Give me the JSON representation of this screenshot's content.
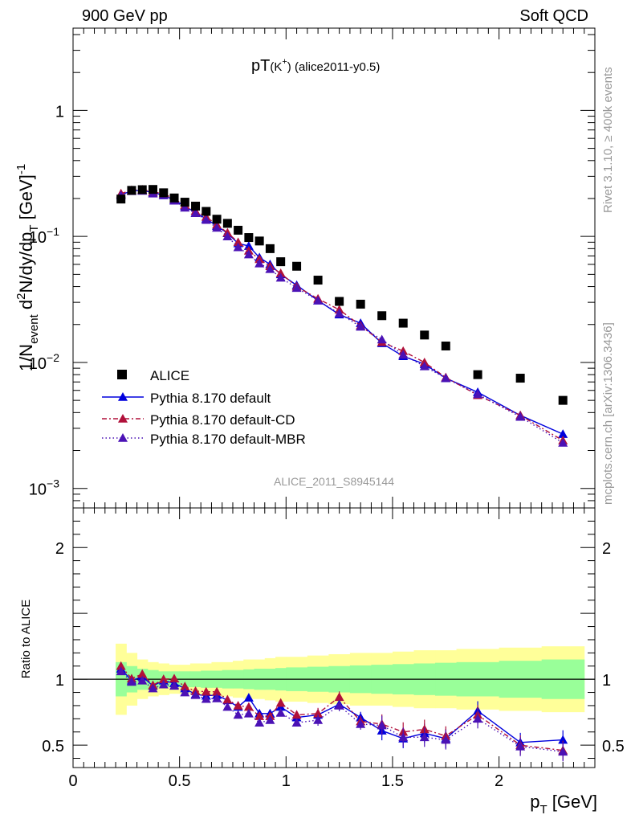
{
  "header": {
    "left": "900 GeV pp",
    "right": "Soft QCD",
    "plot_title": "pT",
    "plot_title_sub": "(K",
    "plot_title_sup": "+",
    "plot_title_tail": ") (alice2011-y0.5)",
    "watermark": "ALICE_2011_S8945144",
    "side_top": "Rivet 3.1.10, ≥ 400k events",
    "side_bottom": "mcplots.cern.ch [arXiv:1306.3436]"
  },
  "axes": {
    "ylabel_main": "1/N",
    "ylabel_main_sub1": "event",
    "ylabel_main_mid": " d",
    "ylabel_main_sup": "2",
    "ylabel_main_rest": "N/dy/dp",
    "ylabel_main_sub2": "T",
    "ylabel_main_unit": " [GeV]",
    "ylabel_main_unitsup": "-1",
    "ylabel_ratio": "Ratio to ALICE",
    "xlabel": "p",
    "xlabel_sub": "T",
    "xlabel_unit": " [GeV]",
    "main_ticks": [
      {
        "value": 1,
        "label": "1"
      },
      {
        "value": 0.1,
        "label": "10",
        "exp": "−1"
      },
      {
        "value": 0.01,
        "label": "10",
        "exp": "−2"
      },
      {
        "value": 0.001,
        "label": "10",
        "exp": "−3"
      }
    ],
    "ratio_ticks": [
      {
        "value": 2,
        "label": "2"
      },
      {
        "value": 1,
        "label": "1"
      },
      {
        "value": 0.5,
        "label": "0.5"
      }
    ],
    "x_ticks": [
      {
        "value": 0,
        "label": "0"
      },
      {
        "value": 0.5,
        "label": "0.5"
      },
      {
        "value": 1,
        "label": "1"
      },
      {
        "value": 1.5,
        "label": "1.5"
      },
      {
        "value": 2,
        "label": "2"
      }
    ]
  },
  "colors": {
    "data": "#000000",
    "default": "#0000dd",
    "cd": "#b0103a",
    "mbr": "#4b12b5",
    "band_outer": "#ffff99",
    "band_inner": "#99ff99"
  },
  "chart_data": {
    "type": "scatter",
    "x_scale": "linear",
    "y_scale": "log",
    "xlim": [
      0,
      2.45
    ],
    "ylim": [
      0.0007,
      4.5
    ],
    "ratio_ylim": [
      0.33,
      2.3
    ],
    "x": [
      0.225,
      0.275,
      0.325,
      0.375,
      0.425,
      0.475,
      0.525,
      0.575,
      0.625,
      0.675,
      0.725,
      0.775,
      0.825,
      0.875,
      0.925,
      0.975,
      1.05,
      1.15,
      1.25,
      1.35,
      1.45,
      1.55,
      1.65,
      1.75,
      1.9,
      2.1,
      2.3
    ],
    "series": [
      {
        "name": "ALICE",
        "key": "data",
        "marker": "square",
        "values": [
          0.198,
          0.232,
          0.235,
          0.236,
          0.222,
          0.202,
          0.187,
          0.174,
          0.158,
          0.137,
          0.127,
          0.112,
          0.098,
          0.092,
          0.08,
          0.063,
          0.058,
          0.045,
          0.0305,
          0.029,
          0.0235,
          0.0205,
          0.0165,
          0.0135,
          0.008,
          0.0075,
          0.005
        ]
      },
      {
        "name": "Pythia 8.170 default",
        "key": "default",
        "marker": "triangle",
        "dash": "",
        "values": [
          0.214,
          0.23,
          0.232,
          0.223,
          0.212,
          0.195,
          0.174,
          0.154,
          0.138,
          0.121,
          0.106,
          0.088,
          0.084,
          0.068,
          0.06,
          0.05,
          0.041,
          0.031,
          0.024,
          0.0205,
          0.0142,
          0.0112,
          0.0097,
          0.0075,
          0.0058,
          0.0038,
          0.0027
        ]
      },
      {
        "name": "Pythia 8.170 default-CD",
        "key": "cd",
        "marker": "triangle",
        "dash": "6,3,2,3",
        "values": [
          0.219,
          0.233,
          0.235,
          0.226,
          0.218,
          0.199,
          0.177,
          0.159,
          0.143,
          0.124,
          0.107,
          0.09,
          0.077,
          0.066,
          0.058,
          0.051,
          0.04,
          0.032,
          0.0262,
          0.0196,
          0.0145,
          0.0123,
          0.01,
          0.0076,
          0.0055,
          0.0038,
          0.0024
        ]
      },
      {
        "name": "Pythia 8.170 default-MBR",
        "key": "mbr",
        "marker": "triangle",
        "dash": "1.5,3",
        "values": [
          0.212,
          0.229,
          0.23,
          0.219,
          0.213,
          0.192,
          0.169,
          0.153,
          0.135,
          0.117,
          0.1,
          0.082,
          0.072,
          0.061,
          0.055,
          0.047,
          0.039,
          0.031,
          0.0245,
          0.0192,
          0.0152,
          0.0115,
          0.0093,
          0.0075,
          0.0056,
          0.0037,
          0.0023
        ]
      }
    ],
    "ratio": {
      "default": [
        1.08,
        0.99,
        1.02,
        0.95,
        0.99,
        0.97,
        0.93,
        0.885,
        0.875,
        0.88,
        0.84,
        0.79,
        0.86,
        0.74,
        0.74,
        0.79,
        0.71,
        0.73,
        0.81,
        0.71,
        0.61,
        0.55,
        0.59,
        0.55,
        0.76,
        0.52,
        0.54
      ],
      "cd": [
        1.1,
        1.005,
        1.04,
        0.955,
        1.0,
        1.005,
        0.945,
        0.91,
        0.905,
        0.905,
        0.845,
        0.8,
        0.79,
        0.72,
        0.72,
        0.82,
        0.73,
        0.74,
        0.865,
        0.68,
        0.66,
        0.6,
        0.62,
        0.57,
        0.73,
        0.5,
        0.46
      ],
      "mbr": [
        1.06,
        0.98,
        0.99,
        0.93,
        0.96,
        0.95,
        0.9,
        0.88,
        0.85,
        0.855,
        0.79,
        0.73,
        0.74,
        0.67,
        0.69,
        0.745,
        0.67,
        0.69,
        0.8,
        0.66,
        0.65,
        0.56,
        0.56,
        0.54,
        0.7,
        0.49,
        0.45
      ]
    },
    "band": {
      "edges": [
        0.2,
        0.25,
        0.3,
        0.35,
        0.4,
        0.45,
        0.5,
        0.55,
        0.6,
        0.65,
        0.7,
        0.75,
        0.8,
        0.85,
        0.9,
        0.95,
        1.0,
        1.1,
        1.2,
        1.3,
        1.4,
        1.5,
        1.6,
        1.7,
        1.8,
        2.0,
        2.2,
        2.4
      ],
      "inner": [
        0.13,
        0.1,
        0.08,
        0.07,
        0.06,
        0.06,
        0.06,
        0.06,
        0.065,
        0.065,
        0.07,
        0.07,
        0.075,
        0.08,
        0.08,
        0.085,
        0.09,
        0.095,
        0.1,
        0.105,
        0.11,
        0.115,
        0.12,
        0.125,
        0.13,
        0.14,
        0.15
      ],
      "outer": [
        0.27,
        0.2,
        0.15,
        0.13,
        0.12,
        0.11,
        0.11,
        0.12,
        0.12,
        0.13,
        0.13,
        0.14,
        0.15,
        0.15,
        0.16,
        0.17,
        0.17,
        0.18,
        0.19,
        0.2,
        0.2,
        0.21,
        0.22,
        0.22,
        0.23,
        0.24,
        0.25
      ]
    }
  }
}
